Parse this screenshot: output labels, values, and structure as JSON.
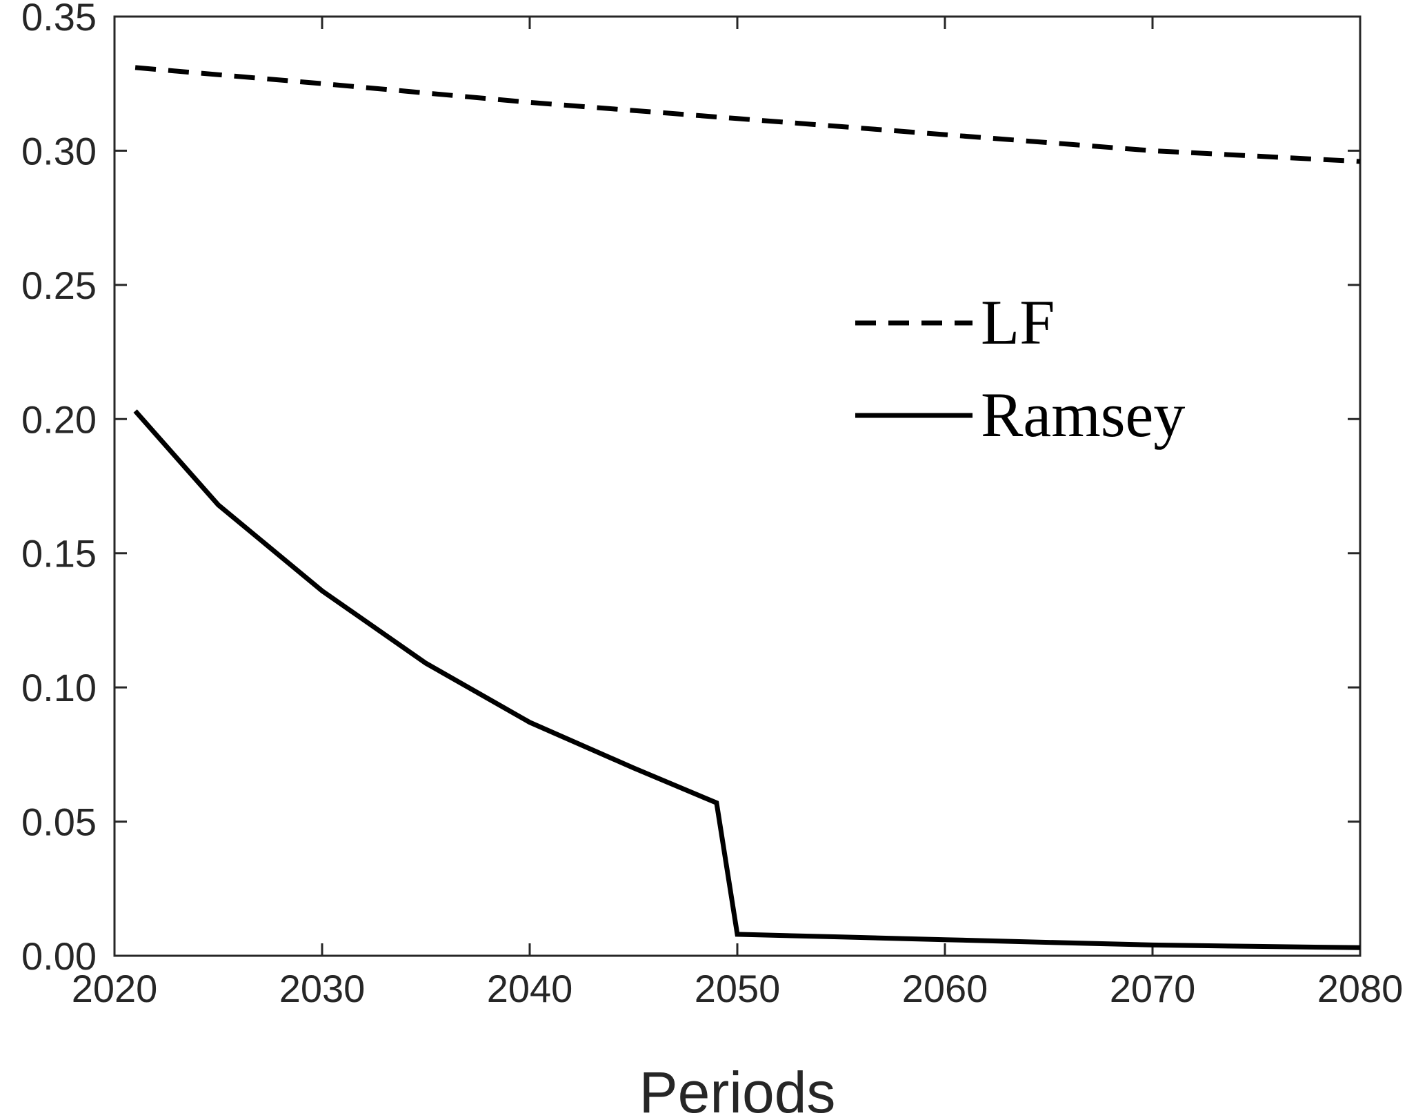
{
  "chart_data": {
    "type": "line",
    "title": "",
    "xlabel": "Periods",
    "ylabel": "",
    "xlim": [
      2020,
      2080
    ],
    "ylim": [
      0,
      0.35
    ],
    "xticks": [
      "2020",
      "2030",
      "2040",
      "2050",
      "2060",
      "2070",
      "2080"
    ],
    "yticks": [
      "0.00",
      "0.05",
      "0.10",
      "0.15",
      "0.20",
      "0.25",
      "0.30",
      "0.35"
    ],
    "grid": false,
    "legend_position": "upper right",
    "series": [
      {
        "name": "LF",
        "style": "dashed",
        "color": "#000000",
        "x": [
          2021,
          2030,
          2040,
          2050,
          2060,
          2070,
          2080
        ],
        "y": [
          0.331,
          0.325,
          0.318,
          0.312,
          0.306,
          0.3,
          0.296
        ]
      },
      {
        "name": "Ramsey",
        "style": "solid",
        "color": "#000000",
        "x": [
          2021,
          2025,
          2030,
          2035,
          2040,
          2045,
          2049,
          2050,
          2055,
          2060,
          2065,
          2070,
          2075,
          2080
        ],
        "y": [
          0.203,
          0.168,
          0.136,
          0.109,
          0.087,
          0.07,
          0.057,
          0.008,
          0.007,
          0.006,
          0.005,
          0.004,
          0.0035,
          0.003
        ]
      }
    ]
  }
}
